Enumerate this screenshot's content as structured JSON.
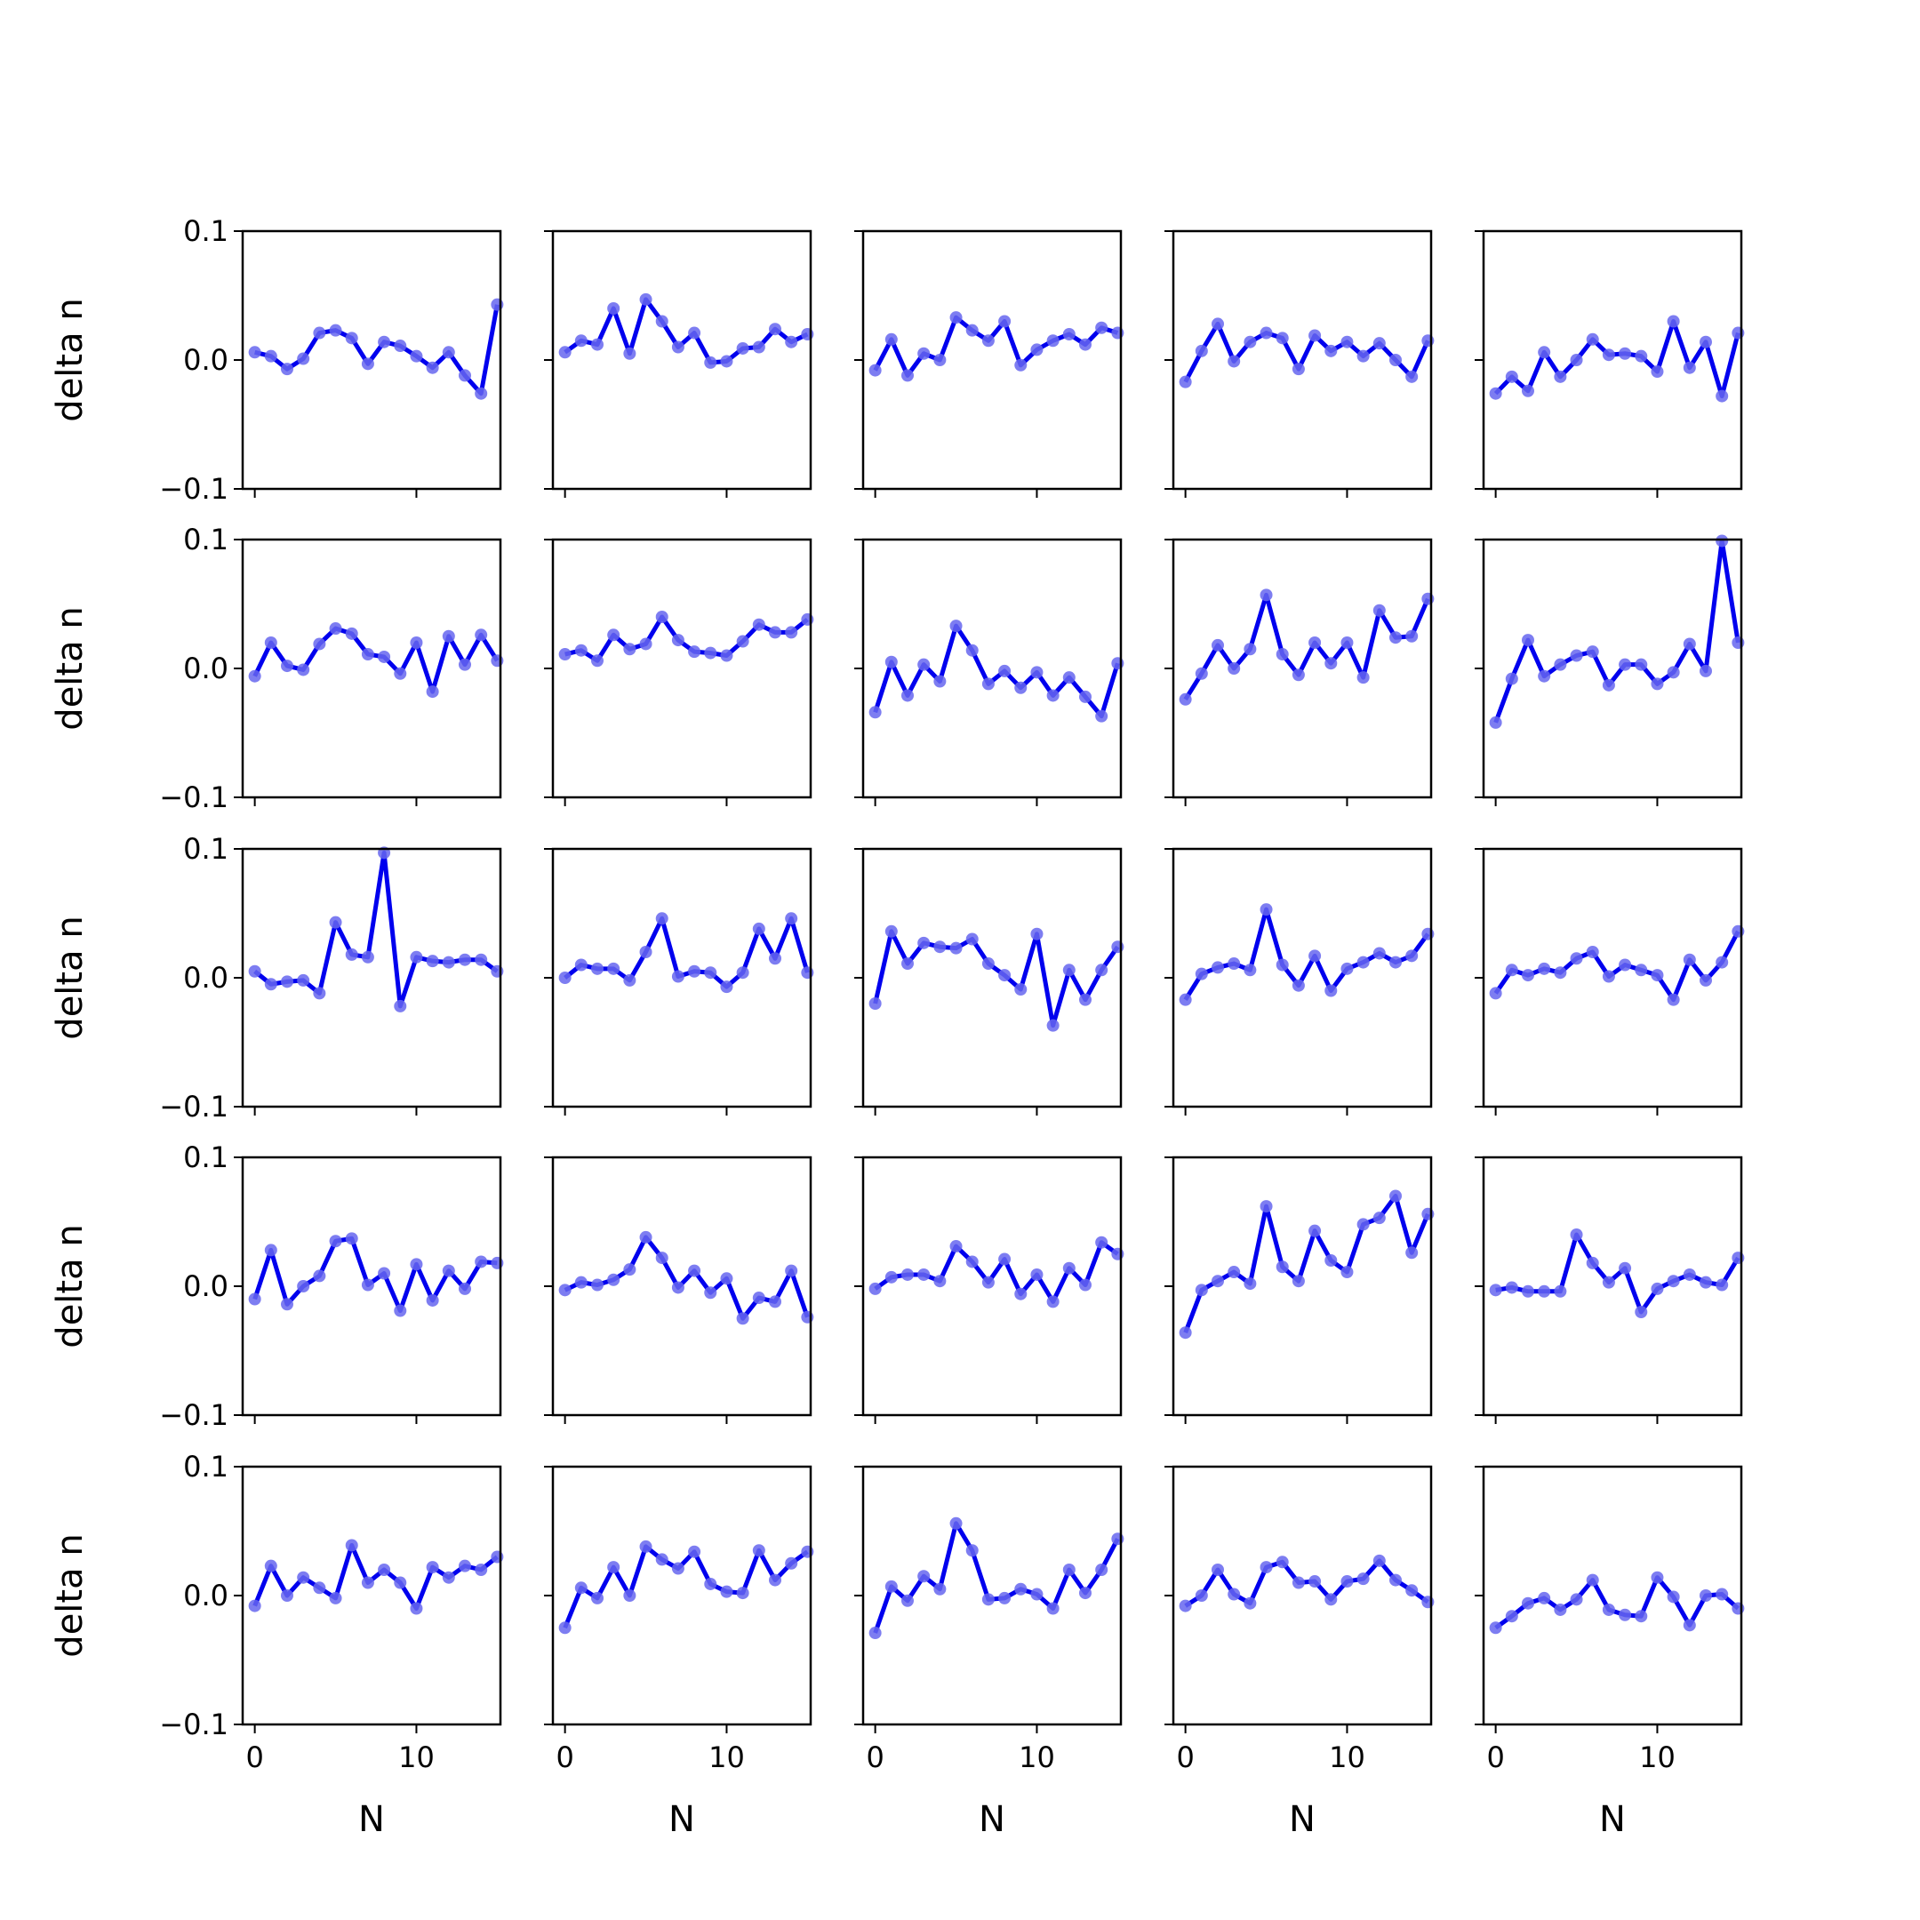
{
  "figure": {
    "rows": 5,
    "cols": 5,
    "line_color": "#0000ee",
    "marker_color": "#6666ee",
    "xlabel": "N",
    "ylabel": "delta n",
    "xlim": [
      -0.75,
      15.2
    ],
    "ylim": [
      -0.1,
      0.1
    ],
    "xticks": [
      0,
      10
    ],
    "xtick_labels": [
      "0",
      "10"
    ],
    "yticks": [
      0.1,
      0.0,
      -0.1
    ],
    "ytick_labels": [
      "0.1",
      "0.0",
      "−0.1"
    ],
    "grid": false,
    "legend": "none"
  },
  "chart_data": {
    "type": "line",
    "x": [
      0,
      1,
      2,
      3,
      4,
      5,
      6,
      7,
      8,
      9,
      10,
      11,
      12,
      13,
      14,
      15
    ],
    "panels": [
      {
        "row": 0,
        "col": 0,
        "values": [
          0.006,
          0.003,
          -0.007,
          0.001,
          0.021,
          0.023,
          0.017,
          -0.003,
          0.014,
          0.011,
          0.003,
          -0.006,
          0.006,
          -0.012,
          -0.026,
          0.043
        ]
      },
      {
        "row": 0,
        "col": 1,
        "values": [
          0.006,
          0.015,
          0.012,
          0.04,
          0.005,
          0.047,
          0.03,
          0.01,
          0.021,
          -0.002,
          -0.001,
          0.009,
          0.01,
          0.024,
          0.014,
          0.02
        ]
      },
      {
        "row": 0,
        "col": 2,
        "values": [
          -0.008,
          0.016,
          -0.012,
          0.005,
          0.0,
          0.033,
          0.023,
          0.015,
          0.03,
          -0.004,
          0.008,
          0.015,
          0.02,
          0.012,
          0.025,
          0.021
        ]
      },
      {
        "row": 0,
        "col": 3,
        "values": [
          -0.017,
          0.007,
          0.028,
          -0.001,
          0.014,
          0.021,
          0.017,
          -0.007,
          0.019,
          0.007,
          0.014,
          0.003,
          0.013,
          0.0,
          -0.013,
          0.015
        ]
      },
      {
        "row": 0,
        "col": 4,
        "values": [
          -0.026,
          -0.013,
          -0.024,
          0.006,
          -0.013,
          0.0,
          0.016,
          0.004,
          0.005,
          0.003,
          -0.009,
          0.03,
          -0.006,
          0.014,
          -0.028,
          0.021
        ]
      },
      {
        "row": 1,
        "col": 0,
        "values": [
          -0.006,
          0.02,
          0.002,
          -0.001,
          0.019,
          0.031,
          0.027,
          0.011,
          0.009,
          -0.004,
          0.02,
          -0.018,
          0.025,
          0.003,
          0.026,
          0.006
        ]
      },
      {
        "row": 1,
        "col": 1,
        "values": [
          0.011,
          0.014,
          0.006,
          0.026,
          0.015,
          0.019,
          0.04,
          0.022,
          0.013,
          0.012,
          0.01,
          0.021,
          0.034,
          0.028,
          0.028,
          0.038
        ]
      },
      {
        "row": 1,
        "col": 2,
        "values": [
          -0.034,
          0.005,
          -0.021,
          0.003,
          -0.01,
          0.033,
          0.014,
          -0.012,
          -0.002,
          -0.015,
          -0.003,
          -0.021,
          -0.007,
          -0.022,
          -0.037,
          0.004
        ]
      },
      {
        "row": 1,
        "col": 3,
        "values": [
          -0.024,
          -0.004,
          0.018,
          0.0,
          0.015,
          0.057,
          0.011,
          -0.005,
          0.02,
          0.004,
          0.02,
          -0.007,
          0.045,
          0.024,
          0.025,
          0.054
        ]
      },
      {
        "row": 1,
        "col": 4,
        "values": [
          -0.042,
          -0.008,
          0.022,
          -0.006,
          0.003,
          0.01,
          0.013,
          -0.013,
          0.003,
          0.003,
          -0.012,
          -0.003,
          0.019,
          -0.002,
          0.099,
          0.02
        ]
      },
      {
        "row": 2,
        "col": 0,
        "values": [
          0.005,
          -0.005,
          -0.003,
          -0.002,
          -0.012,
          0.043,
          0.018,
          0.016,
          0.097,
          -0.022,
          0.016,
          0.013,
          0.012,
          0.014,
          0.014,
          0.005
        ]
      },
      {
        "row": 2,
        "col": 1,
        "values": [
          0.0,
          0.01,
          0.007,
          0.007,
          -0.002,
          0.02,
          0.046,
          0.001,
          0.005,
          0.004,
          -0.007,
          0.004,
          0.038,
          0.015,
          0.046,
          0.004
        ]
      },
      {
        "row": 2,
        "col": 2,
        "values": [
          -0.02,
          0.036,
          0.011,
          0.027,
          0.024,
          0.023,
          0.03,
          0.011,
          0.002,
          -0.009,
          0.034,
          -0.037,
          0.006,
          -0.017,
          0.006,
          0.024
        ]
      },
      {
        "row": 2,
        "col": 3,
        "values": [
          -0.017,
          0.003,
          0.008,
          0.011,
          0.006,
          0.053,
          0.01,
          -0.006,
          0.017,
          -0.01,
          0.007,
          0.012,
          0.019,
          0.012,
          0.017,
          0.034
        ]
      },
      {
        "row": 2,
        "col": 4,
        "values": [
          -0.012,
          0.006,
          0.002,
          0.007,
          0.004,
          0.015,
          0.02,
          0.001,
          0.01,
          0.006,
          0.002,
          -0.017,
          0.014,
          -0.002,
          0.012,
          0.036
        ]
      },
      {
        "row": 3,
        "col": 0,
        "values": [
          -0.01,
          0.028,
          -0.014,
          0.0,
          0.008,
          0.035,
          0.037,
          0.001,
          0.01,
          -0.019,
          0.017,
          -0.011,
          0.012,
          -0.002,
          0.019,
          0.018
        ]
      },
      {
        "row": 3,
        "col": 1,
        "values": [
          -0.003,
          0.003,
          0.001,
          0.005,
          0.013,
          0.038,
          0.022,
          -0.001,
          0.012,
          -0.005,
          0.006,
          -0.025,
          -0.009,
          -0.012,
          0.012,
          -0.024
        ]
      },
      {
        "row": 3,
        "col": 2,
        "values": [
          -0.002,
          0.007,
          0.009,
          0.009,
          0.004,
          0.031,
          0.019,
          0.003,
          0.021,
          -0.006,
          0.009,
          -0.012,
          0.014,
          0.001,
          0.034,
          0.025
        ]
      },
      {
        "row": 3,
        "col": 3,
        "values": [
          -0.036,
          -0.003,
          0.004,
          0.011,
          0.002,
          0.062,
          0.015,
          0.004,
          0.043,
          0.02,
          0.011,
          0.048,
          0.053,
          0.07,
          0.026,
          0.056
        ]
      },
      {
        "row": 3,
        "col": 4,
        "values": [
          -0.003,
          -0.001,
          -0.004,
          -0.004,
          -0.004,
          0.04,
          0.018,
          0.003,
          0.014,
          -0.02,
          -0.002,
          0.004,
          0.009,
          0.003,
          0.001,
          0.022
        ]
      },
      {
        "row": 4,
        "col": 0,
        "values": [
          -0.008,
          0.023,
          0.0,
          0.014,
          0.006,
          -0.002,
          0.039,
          0.01,
          0.02,
          0.01,
          -0.01,
          0.022,
          0.014,
          0.023,
          0.02,
          0.03
        ]
      },
      {
        "row": 4,
        "col": 1,
        "values": [
          -0.025,
          0.006,
          -0.002,
          0.022,
          0.0,
          0.038,
          0.028,
          0.021,
          0.034,
          0.009,
          0.003,
          0.002,
          0.035,
          0.012,
          0.025,
          0.034
        ]
      },
      {
        "row": 4,
        "col": 2,
        "values": [
          -0.029,
          0.007,
          -0.004,
          0.015,
          0.005,
          0.056,
          0.035,
          -0.003,
          -0.002,
          0.005,
          0.001,
          -0.01,
          0.02,
          0.002,
          0.02,
          0.044
        ]
      },
      {
        "row": 4,
        "col": 3,
        "values": [
          -0.008,
          0.0,
          0.02,
          0.001,
          -0.006,
          0.022,
          0.026,
          0.01,
          0.011,
          -0.003,
          0.011,
          0.013,
          0.027,
          0.012,
          0.004,
          -0.005
        ]
      },
      {
        "row": 4,
        "col": 4,
        "values": [
          -0.025,
          -0.016,
          -0.006,
          -0.002,
          -0.011,
          -0.003,
          0.012,
          -0.011,
          -0.015,
          -0.016,
          0.014,
          -0.001,
          -0.023,
          0.0,
          0.001,
          -0.01
        ]
      }
    ]
  }
}
